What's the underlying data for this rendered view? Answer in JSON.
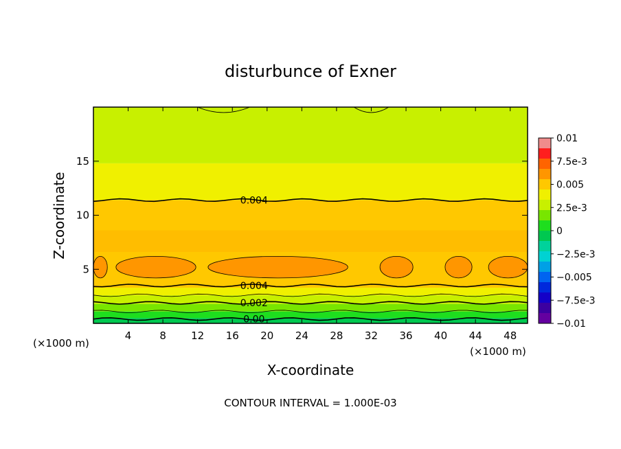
{
  "chart_data": {
    "type": "heatmap",
    "title": "disturbunce of Exner",
    "xlabel": "X-coordinate",
    "ylabel": "Z-coordinate",
    "x_unit": "(×1000 m)",
    "y_unit": "(×1000 m)",
    "xlim": [
      0,
      50
    ],
    "ylim": [
      0,
      20
    ],
    "xticks": [
      "4",
      "8",
      "12",
      "16",
      "20",
      "24",
      "28",
      "32",
      "36",
      "40",
      "44",
      "48"
    ],
    "yticks": [
      "5",
      "10",
      "15"
    ],
    "colorbar": {
      "labels": [
        "0.01",
        "7.5e-3",
        "0.005",
        "2.5e-3",
        "0",
        "−2.5e-3",
        "−0.005",
        "−7.5e-3",
        "−0.01"
      ],
      "colors": [
        "#f08c8c",
        "#ff1e1e",
        "#ff6400",
        "#ff9600",
        "#ffc800",
        "#f0f000",
        "#c8f000",
        "#78e600",
        "#1ede1e",
        "#00c850",
        "#00d29b",
        "#00d2d2",
        "#00a0e6",
        "#0064f0",
        "#0028dc",
        "#1400c8",
        "#3c00a0",
        "#6400a0"
      ]
    },
    "bands": [
      {
        "z_from": 0.0,
        "z_to": 0.5,
        "value": -0.0005
      },
      {
        "z_from": 0.5,
        "z_to": 1.1,
        "value": 0.0005
      },
      {
        "z_from": 1.1,
        "z_to": 1.8,
        "value": 0.0015
      },
      {
        "z_from": 1.8,
        "z_to": 2.6,
        "value": 0.0025
      },
      {
        "z_from": 2.6,
        "z_to": 3.3,
        "value": 0.0035
      },
      {
        "z_from": 3.3,
        "z_to": 11.4,
        "value": 0.0045
      },
      {
        "z_from": 11.4,
        "z_to": 14.8,
        "value": 0.0035
      },
      {
        "z_from": 14.8,
        "z_to": 20.0,
        "value": 0.0025
      }
    ],
    "contour_lines": [
      {
        "z": 0.4,
        "label": "0.00"
      },
      {
        "z": 1.1,
        "label": ""
      },
      {
        "z": 1.9,
        "label": "0.002"
      },
      {
        "z": 2.6,
        "label": ""
      },
      {
        "z": 3.5,
        "label": "0.004"
      },
      {
        "z": 11.4,
        "label": "0.004"
      }
    ],
    "annotation": "CONTOUR INTERVAL = 1.000E-03"
  }
}
